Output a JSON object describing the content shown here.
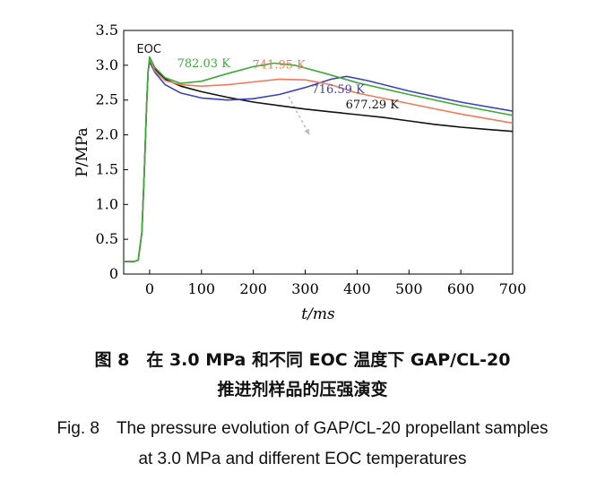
{
  "chart_data": {
    "type": "line",
    "xlabel": "t/ms",
    "ylabel": "P/MPa",
    "xlim": [
      -50,
      700
    ],
    "ylim": [
      0,
      3.5
    ],
    "xticks": [
      0,
      100,
      200,
      300,
      400,
      500,
      600,
      700
    ],
    "yticks": [
      0,
      0.5,
      1.0,
      1.5,
      2.0,
      2.5,
      3.0,
      3.5
    ],
    "grid": false,
    "annotations": [
      {
        "text": "EOC",
        "x": -25,
        "y": 3.18
      }
    ],
    "series": [
      {
        "name": "677.29 K",
        "color": "#111111",
        "label_pos": [
          378,
          2.38
        ],
        "points": [
          [
            -50,
            0.18
          ],
          [
            -30,
            0.18
          ],
          [
            -22,
            0.2
          ],
          [
            -15,
            0.6
          ],
          [
            -10,
            1.5
          ],
          [
            -6,
            2.4
          ],
          [
            -3,
            2.9
          ],
          [
            0,
            3.08
          ],
          [
            10,
            2.95
          ],
          [
            30,
            2.8
          ],
          [
            60,
            2.7
          ],
          [
            100,
            2.62
          ],
          [
            150,
            2.54
          ],
          [
            200,
            2.47
          ],
          [
            250,
            2.42
          ],
          [
            300,
            2.37
          ],
          [
            350,
            2.33
          ],
          [
            400,
            2.29
          ],
          [
            450,
            2.25
          ],
          [
            500,
            2.2
          ],
          [
            550,
            2.15
          ],
          [
            600,
            2.11
          ],
          [
            650,
            2.08
          ],
          [
            700,
            2.05
          ]
        ]
      },
      {
        "name": "716.59 K",
        "color": "#3a43b8",
        "label_pos": [
          312,
          2.6
        ],
        "points": [
          [
            -50,
            0.18
          ],
          [
            -30,
            0.18
          ],
          [
            -22,
            0.2
          ],
          [
            -15,
            0.6
          ],
          [
            -10,
            1.5
          ],
          [
            -6,
            2.4
          ],
          [
            -3,
            2.9
          ],
          [
            0,
            3.05
          ],
          [
            10,
            2.9
          ],
          [
            30,
            2.72
          ],
          [
            60,
            2.6
          ],
          [
            100,
            2.53
          ],
          [
            150,
            2.5
          ],
          [
            200,
            2.52
          ],
          [
            250,
            2.58
          ],
          [
            300,
            2.68
          ],
          [
            350,
            2.8
          ],
          [
            380,
            2.84
          ],
          [
            420,
            2.78
          ],
          [
            500,
            2.63
          ],
          [
            600,
            2.47
          ],
          [
            700,
            2.34
          ]
        ]
      },
      {
        "name": "741.95 K",
        "color": "#f07a5a",
        "label_pos": [
          198,
          2.95
        ],
        "points": [
          [
            -50,
            0.18
          ],
          [
            -30,
            0.18
          ],
          [
            -22,
            0.2
          ],
          [
            -15,
            0.6
          ],
          [
            -10,
            1.5
          ],
          [
            -6,
            2.4
          ],
          [
            -3,
            2.9
          ],
          [
            0,
            3.1
          ],
          [
            10,
            2.92
          ],
          [
            30,
            2.78
          ],
          [
            60,
            2.72
          ],
          [
            100,
            2.7
          ],
          [
            150,
            2.72
          ],
          [
            200,
            2.76
          ],
          [
            250,
            2.8
          ],
          [
            300,
            2.79
          ],
          [
            350,
            2.72
          ],
          [
            400,
            2.6
          ],
          [
            500,
            2.45
          ],
          [
            600,
            2.3
          ],
          [
            700,
            2.17
          ]
        ]
      },
      {
        "name": "782.03 K",
        "color": "#3aaa3a",
        "label_pos": [
          53,
          2.97
        ],
        "points": [
          [
            -50,
            0.18
          ],
          [
            -30,
            0.18
          ],
          [
            -22,
            0.2
          ],
          [
            -15,
            0.6
          ],
          [
            -10,
            1.5
          ],
          [
            -6,
            2.4
          ],
          [
            -3,
            2.9
          ],
          [
            0,
            3.12
          ],
          [
            10,
            2.97
          ],
          [
            30,
            2.82
          ],
          [
            60,
            2.74
          ],
          [
            100,
            2.77
          ],
          [
            150,
            2.88
          ],
          [
            200,
            2.98
          ],
          [
            240,
            3.03
          ],
          [
            280,
            3.0
          ],
          [
            340,
            2.88
          ],
          [
            400,
            2.75
          ],
          [
            500,
            2.58
          ],
          [
            600,
            2.42
          ],
          [
            700,
            2.28
          ]
        ]
      }
    ],
    "trend_arrow": {
      "from": [
        268,
        2.55
      ],
      "to": [
        308,
        2.0
      ],
      "color": "#bbbbbb"
    }
  },
  "caption": {
    "zh_line1": "图 8　在 3.0 MPa 和不同 EOC 温度下 GAP/CL-20",
    "zh_line2": "推进剂样品的压强演变",
    "en_line1": "Fig. 8　The pressure evolution of GAP/CL-20 propellant samples",
    "en_line2": "at 3.0 MPa and different EOC temperatures"
  }
}
